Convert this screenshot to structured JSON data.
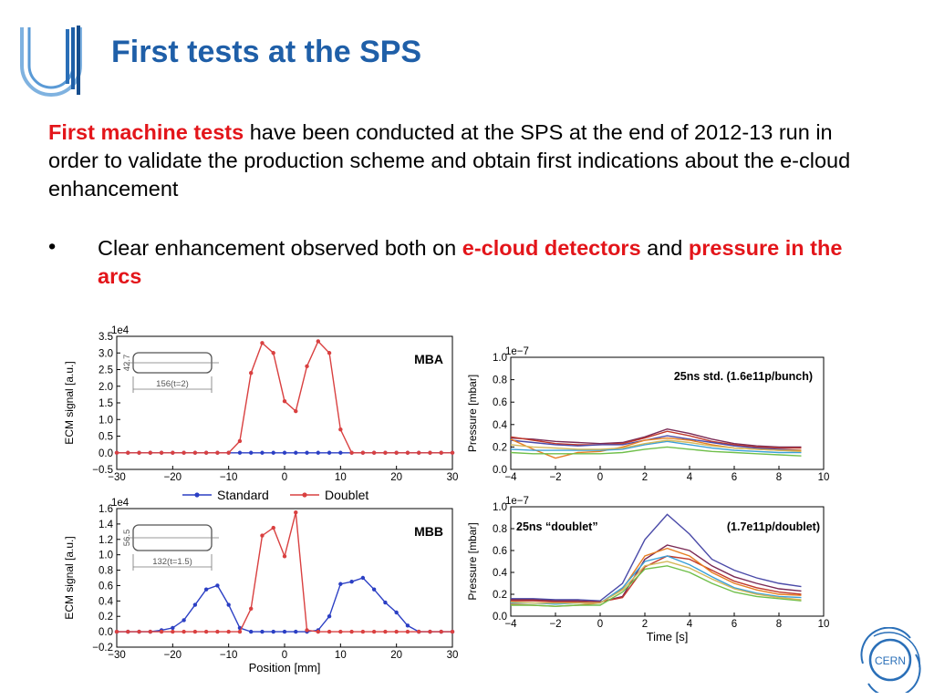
{
  "slide": {
    "title": "First tests at the SPS",
    "intro_highlight": "First machine tests",
    "intro_rest": " have been conducted at the SPS at the end of 2012-13 run in order to validate the production scheme and obtain first indications about the e-cloud enhancement",
    "bullet_marker": "•",
    "bullet_part1": "Clear enhancement observed both on ",
    "bullet_hl1": "e-cloud detectors",
    "bullet_part2": " and ",
    "bullet_hl2": "pressure in the arcs"
  },
  "logos": {
    "left": "u-logo-icon",
    "right": "cern-logo-icon",
    "cern_text": "CERN"
  },
  "colors": {
    "title": "#1f5fa8",
    "highlight": "#e3151a",
    "standard": "#2b3fc4",
    "doublet": "#d94040"
  },
  "legend": {
    "standard": "Standard",
    "doublet": "Doublet"
  },
  "chart_data": [
    {
      "id": "mba",
      "type": "line",
      "label": "MBA",
      "ylabel": "ECM signal [a.u.]",
      "xlabel": "",
      "multiplier": "1e4",
      "xlim": [
        -30,
        30
      ],
      "ylim": [
        -0.5,
        3.5
      ],
      "xticks": [
        -30,
        -20,
        -10,
        0,
        10,
        20,
        30
      ],
      "yticks": [
        -0.5,
        0.0,
        0.5,
        1.0,
        1.5,
        2.0,
        2.5,
        3.0,
        3.5
      ],
      "inset": {
        "height_label": "42.7",
        "width_label": "156(t=2)"
      },
      "x": [
        -30,
        -28,
        -26,
        -24,
        -22,
        -20,
        -18,
        -16,
        -14,
        -12,
        -10,
        -8,
        -6,
        -4,
        -2,
        0,
        2,
        4,
        6,
        8,
        10,
        12,
        14,
        16,
        18,
        20,
        22,
        24,
        26,
        28,
        30
      ],
      "series": [
        {
          "name": "Standard",
          "color": "#2b3fc4",
          "values": [
            0,
            0,
            0,
            0,
            0,
            0,
            0,
            0,
            0,
            0,
            0,
            0,
            0,
            0,
            0,
            0,
            0,
            0,
            0,
            0,
            0,
            0,
            0,
            0,
            0,
            0,
            0,
            0,
            0,
            0,
            0
          ]
        },
        {
          "name": "Doublet",
          "color": "#d94040",
          "values": [
            0,
            0,
            0,
            0,
            0,
            0,
            0,
            0,
            0,
            0,
            0,
            0.35,
            2.4,
            3.3,
            3.0,
            1.55,
            1.25,
            2.6,
            3.35,
            3.0,
            0.7,
            0,
            0,
            0,
            0,
            0,
            0,
            0,
            0,
            0,
            0
          ]
        }
      ]
    },
    {
      "id": "mbb",
      "type": "line",
      "label": "MBB",
      "ylabel": "ECM signal [a.u.]",
      "xlabel": "Position [mm]",
      "multiplier": "1e4",
      "xlim": [
        -30,
        30
      ],
      "ylim": [
        -0.2,
        1.6
      ],
      "xticks": [
        -30,
        -20,
        -10,
        0,
        10,
        20,
        30
      ],
      "yticks": [
        -0.2,
        0.0,
        0.2,
        0.4,
        0.6,
        0.8,
        1.0,
        1.2,
        1.4,
        1.6
      ],
      "inset": {
        "height_label": "56.5",
        "width_label": "132(t=1.5)"
      },
      "x": [
        -30,
        -28,
        -26,
        -24,
        -22,
        -20,
        -18,
        -16,
        -14,
        -12,
        -10,
        -8,
        -6,
        -4,
        -2,
        0,
        2,
        4,
        6,
        8,
        10,
        12,
        14,
        16,
        18,
        20,
        22,
        24,
        26,
        28,
        30
      ],
      "series": [
        {
          "name": "Standard",
          "color": "#2b3fc4",
          "values": [
            0,
            0,
            0,
            0,
            0.02,
            0.05,
            0.15,
            0.35,
            0.55,
            0.6,
            0.35,
            0.05,
            0,
            0,
            0,
            0,
            0,
            0,
            0.02,
            0.2,
            0.62,
            0.65,
            0.7,
            0.55,
            0.38,
            0.25,
            0.08,
            0,
            0,
            0,
            0
          ]
        },
        {
          "name": "Doublet",
          "color": "#d94040",
          "values": [
            0,
            0,
            0,
            0,
            0,
            0,
            0,
            0,
            0,
            0,
            0,
            0,
            0.3,
            1.25,
            1.35,
            0.98,
            1.55,
            0.02,
            0,
            0,
            0,
            0,
            0,
            0,
            0,
            0,
            0,
            0,
            0,
            0,
            0
          ]
        }
      ]
    },
    {
      "id": "std",
      "type": "line",
      "annotation": "25ns std. (1.6e11p/bunch)",
      "ylabel": "Pressure [mbar]",
      "xlabel": "",
      "multiplier": "1e−7",
      "xlim": [
        -4,
        10
      ],
      "ylim": [
        0.0,
        1.0
      ],
      "xticks": [
        -4,
        -2,
        0,
        2,
        4,
        6,
        8,
        10
      ],
      "yticks": [
        0.0,
        0.2,
        0.4,
        0.6,
        0.8,
        1.0
      ],
      "x": [
        -4,
        -3,
        -2,
        -1,
        0,
        1,
        2,
        3,
        4,
        5,
        6,
        7,
        8,
        9
      ],
      "series": [
        {
          "color": "#7a2a55",
          "values": [
            0.28,
            0.27,
            0.25,
            0.24,
            0.23,
            0.24,
            0.29,
            0.36,
            0.32,
            0.27,
            0.23,
            0.21,
            0.2,
            0.2
          ]
        },
        {
          "color": "#c0392b",
          "values": [
            0.29,
            0.26,
            0.23,
            0.22,
            0.22,
            0.23,
            0.28,
            0.34,
            0.3,
            0.25,
            0.22,
            0.2,
            0.19,
            0.19
          ]
        },
        {
          "color": "#4a4aa8",
          "values": [
            0.26,
            0.24,
            0.22,
            0.21,
            0.22,
            0.22,
            0.26,
            0.3,
            0.27,
            0.24,
            0.21,
            0.19,
            0.18,
            0.17
          ]
        },
        {
          "color": "#e67e22",
          "values": [
            0.27,
            0.18,
            0.1,
            0.15,
            0.16,
            0.2,
            0.26,
            0.28,
            0.26,
            0.22,
            0.19,
            0.18,
            0.17,
            0.17
          ]
        },
        {
          "color": "#3aa0d8",
          "values": [
            0.18,
            0.17,
            0.17,
            0.17,
            0.17,
            0.18,
            0.22,
            0.25,
            0.22,
            0.19,
            0.17,
            0.16,
            0.15,
            0.15
          ]
        },
        {
          "color": "#6fbf4a",
          "values": [
            0.15,
            0.14,
            0.14,
            0.14,
            0.14,
            0.15,
            0.18,
            0.2,
            0.18,
            0.16,
            0.15,
            0.14,
            0.13,
            0.12
          ]
        },
        {
          "color": "#d4b85a",
          "values": [
            0.22,
            0.2,
            0.19,
            0.18,
            0.18,
            0.19,
            0.23,
            0.26,
            0.24,
            0.21,
            0.19,
            0.18,
            0.17,
            0.16
          ]
        }
      ]
    },
    {
      "id": "doublet",
      "type": "line",
      "annotation_left": "25ns “doublet”",
      "annotation_right": "(1.7e11p/doublet)",
      "ylabel": "Pressure [mbar]",
      "xlabel": "Time [s]",
      "multiplier": "1e−7",
      "xlim": [
        -4,
        10
      ],
      "ylim": [
        0.0,
        1.0
      ],
      "xticks": [
        -4,
        -2,
        0,
        2,
        4,
        6,
        8,
        10
      ],
      "yticks": [
        0.0,
        0.2,
        0.4,
        0.6,
        0.8,
        1.0
      ],
      "x": [
        -4,
        -3,
        -2,
        -1,
        0,
        1,
        2,
        3,
        4,
        5,
        6,
        7,
        8,
        9
      ],
      "series": [
        {
          "color": "#4a4aa8",
          "values": [
            0.16,
            0.16,
            0.15,
            0.15,
            0.14,
            0.3,
            0.7,
            0.93,
            0.75,
            0.52,
            0.42,
            0.35,
            0.3,
            0.27
          ]
        },
        {
          "color": "#7a2a55",
          "values": [
            0.15,
            0.15,
            0.14,
            0.14,
            0.13,
            0.18,
            0.52,
            0.65,
            0.6,
            0.46,
            0.36,
            0.3,
            0.25,
            0.23
          ]
        },
        {
          "color": "#c0392b",
          "values": [
            0.14,
            0.14,
            0.13,
            0.13,
            0.13,
            0.17,
            0.45,
            0.55,
            0.52,
            0.42,
            0.32,
            0.26,
            0.22,
            0.2
          ]
        },
        {
          "color": "#e67e22",
          "values": [
            0.11,
            0.1,
            0.09,
            0.1,
            0.12,
            0.25,
            0.55,
            0.62,
            0.55,
            0.4,
            0.3,
            0.24,
            0.2,
            0.19
          ]
        },
        {
          "color": "#3aa0d8",
          "values": [
            0.12,
            0.12,
            0.11,
            0.12,
            0.12,
            0.26,
            0.5,
            0.55,
            0.47,
            0.36,
            0.26,
            0.21,
            0.18,
            0.17
          ]
        },
        {
          "color": "#6fbf4a",
          "values": [
            0.1,
            0.1,
            0.09,
            0.1,
            0.1,
            0.22,
            0.43,
            0.46,
            0.4,
            0.3,
            0.22,
            0.18,
            0.16,
            0.14
          ]
        },
        {
          "color": "#d4b85a",
          "values": [
            0.13,
            0.12,
            0.12,
            0.12,
            0.12,
            0.24,
            0.46,
            0.5,
            0.44,
            0.34,
            0.25,
            0.2,
            0.17,
            0.15
          ]
        }
      ]
    }
  ]
}
